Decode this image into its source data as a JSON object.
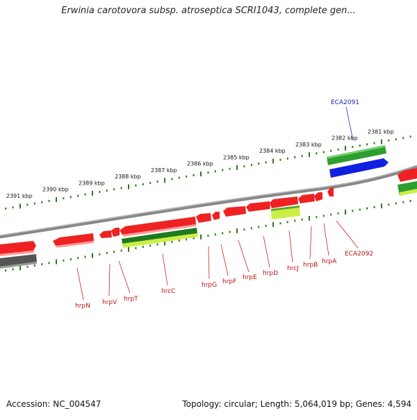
{
  "title": "Erwinia carotovora subsp. atroseptica SCRI1043, complete gen...",
  "footer": {
    "accession": "Accession: NC_004547",
    "summary": "Topology: circular; Length: 5,064,019 bp; Genes: 4,594"
  },
  "colors": {
    "forward_gene": "#ee2222",
    "green_gene": "#2e9e2e",
    "blue_gene": "#1020e0",
    "lime_gene": "#ccee44",
    "dark_gene": "#555555",
    "backbone": "#888888",
    "ticks": "#2a7a1a",
    "label_red": "#bb1111",
    "label_blue": "#1122bb"
  },
  "ruler_labels": [
    "2391 kbp",
    "2390 kbp",
    "2389 kbp",
    "2388 kbp",
    "2387 kbp",
    "2386 kbp",
    "2385 kbp",
    "2384 kbp",
    "2383 kbp",
    "2382 kbp",
    "2381 kbp"
  ],
  "gene_labels": {
    "top": [
      "ECA2091"
    ],
    "bottom": [
      "hrpN",
      "hrpV",
      "hrpT",
      "hrcC",
      "hrpG",
      "hrpF",
      "hrpE",
      "hrpD",
      "hrcJ",
      "hrpB",
      "hrpA",
      "ECA2092"
    ]
  }
}
